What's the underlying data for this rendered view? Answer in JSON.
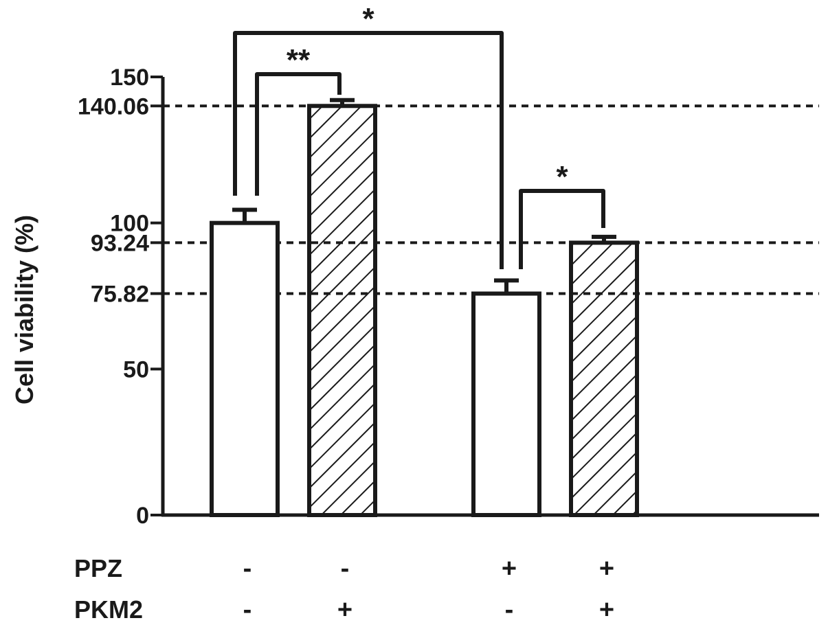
{
  "chart_data": {
    "type": "bar",
    "ylabel": "Cell viability (%)",
    "ylim": [
      0,
      150
    ],
    "y_ticks": [
      0,
      50,
      100,
      150
    ],
    "bars": [
      {
        "value": 100.0,
        "error": 4.5,
        "fill": "white",
        "ppz": "-",
        "pkm2": "-"
      },
      {
        "value": 140.06,
        "error": 2.0,
        "fill": "hatched",
        "ppz": "-",
        "pkm2": "+"
      },
      {
        "value": 75.82,
        "error": 4.5,
        "fill": "white",
        "ppz": "+",
        "pkm2": "-"
      },
      {
        "value": 93.24,
        "error": 2.0,
        "fill": "hatched",
        "ppz": "+",
        "pkm2": "+"
      }
    ],
    "reference_lines": [
      {
        "value": 140.06,
        "label": "140.06"
      },
      {
        "value": 93.24,
        "label": "93.24"
      },
      {
        "value": 75.82,
        "label": "75.82"
      }
    ],
    "significance": [
      {
        "from": 0,
        "to": 1,
        "label": "**"
      },
      {
        "from": 0,
        "to": 2,
        "label": "*"
      },
      {
        "from": 2,
        "to": 3,
        "label": "*"
      }
    ],
    "row_labels": [
      "PPZ",
      "PKM2"
    ],
    "grid": false,
    "legend": "none"
  }
}
